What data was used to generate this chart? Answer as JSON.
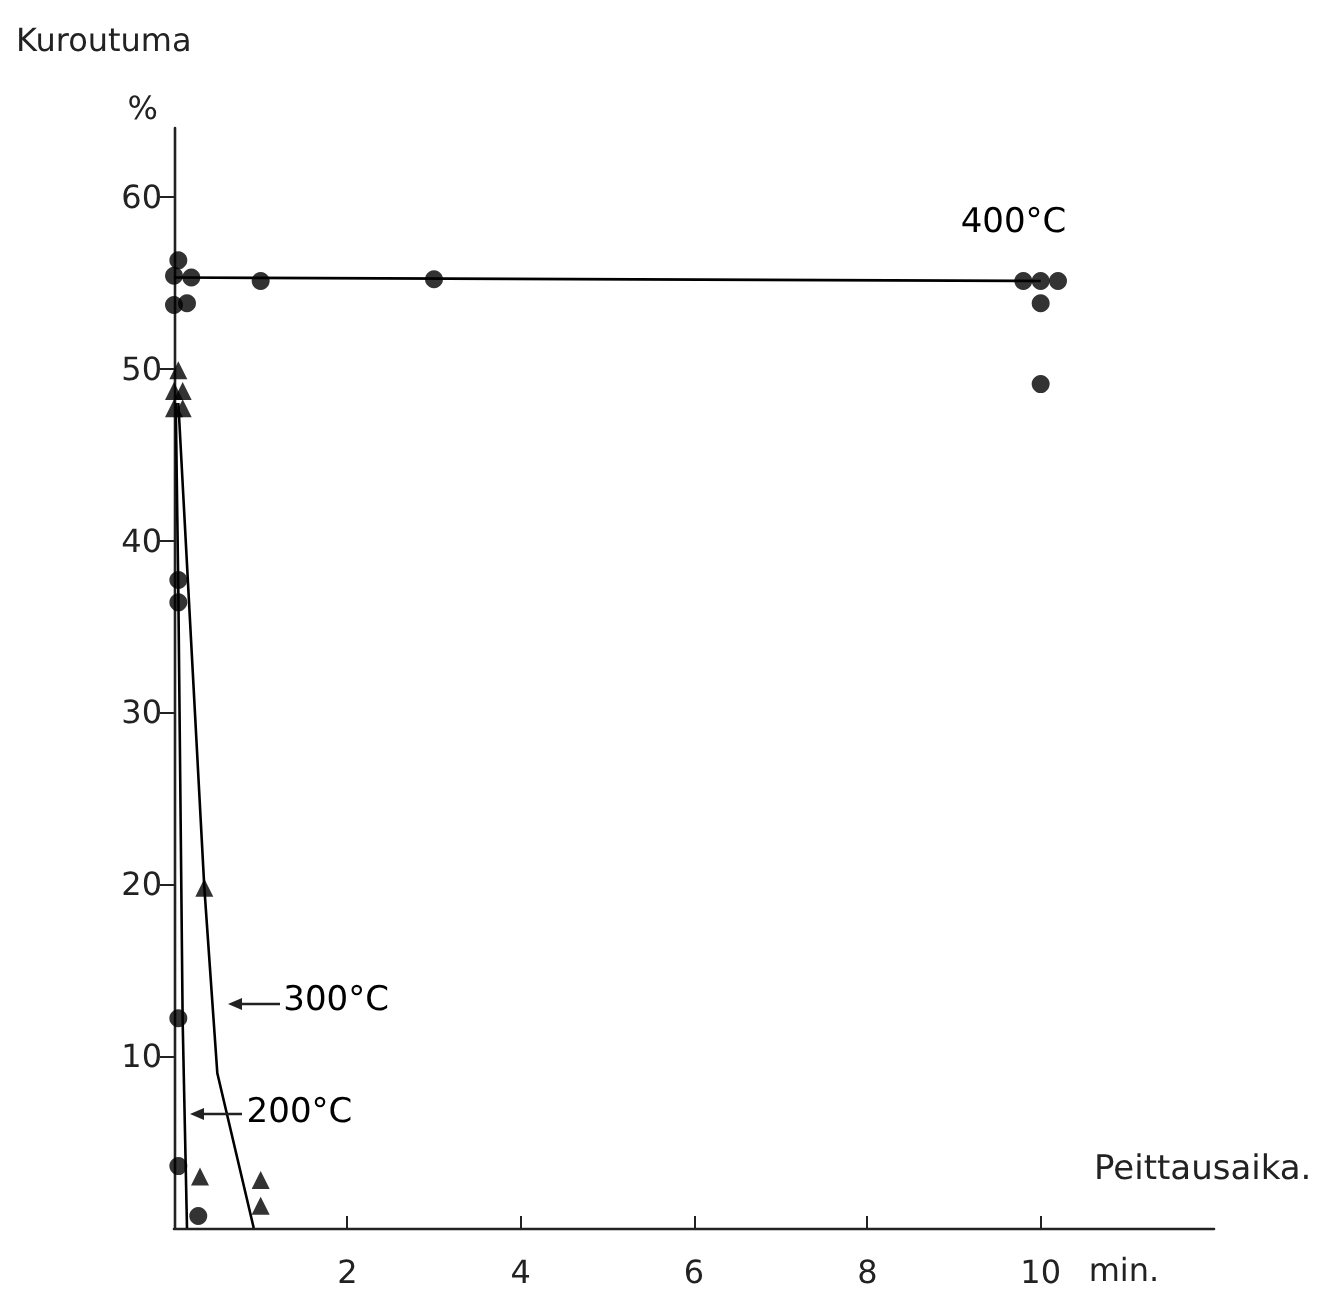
{
  "chart_data": {
    "type": "scatter",
    "xlabel": "Peittausaika.",
    "ylabel": "Kuroutuma",
    "annotations": [
      "%",
      "min."
    ],
    "xlim": [
      0,
      12
    ],
    "ylim": [
      0,
      64
    ],
    "xticks": [
      2,
      4,
      6,
      8,
      10
    ],
    "yticks": [
      10,
      20,
      30,
      40,
      50,
      60
    ],
    "grid": false,
    "legend": false,
    "series": [
      {
        "marker": "circle",
        "color": "#000000",
        "x": [
          0,
          0.2,
          0,
          0.15,
          0.05,
          1,
          3,
          9.8,
          10,
          10.2,
          10,
          10
        ],
        "values": [
          55.4,
          55.3,
          53.7,
          53.8,
          56.3,
          55.1,
          55.2,
          55.1,
          55.1,
          55.1,
          53.8,
          49.1
        ]
      },
      {
        "name": "400°C",
        "type": "line",
        "marker": "none",
        "color": "#000000",
        "x": [
          0,
          10
        ],
        "values": [
          55.3,
          55.1
        ]
      },
      {
        "marker": "triangle",
        "color": "#000000",
        "x": [
          0,
          0.1,
          0,
          0.1,
          0.05,
          0.35,
          0.3,
          1,
          1
        ],
        "values": [
          48.7,
          48.7,
          47.7,
          47.7,
          49.9,
          19.8,
          3.0,
          2.8,
          1.3
        ]
      },
      {
        "name": "300°C",
        "type": "line",
        "marker": "none",
        "color": "#000000",
        "x": [
          0.05,
          0.35,
          0.5,
          0.92
        ],
        "values": [
          48,
          19.8,
          9,
          0
        ]
      },
      {
        "marker": "circle",
        "color": "#000000",
        "x": [
          0.05,
          0.05,
          0.05,
          0.05,
          0.28
        ],
        "values": [
          37.7,
          36.4,
          12.2,
          3.6,
          0.7
        ]
      },
      {
        "name": "200°C",
        "type": "line",
        "marker": "none",
        "color": "#000000",
        "x": [
          0.02,
          0.05,
          0.1,
          0.15
        ],
        "values": [
          48,
          37,
          12,
          0
        ]
      }
    ]
  }
}
